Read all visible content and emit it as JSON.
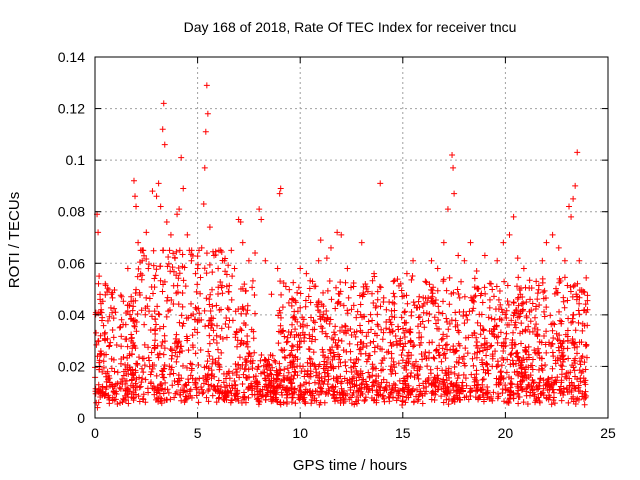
{
  "chart_data": {
    "type": "scatter",
    "title": "Day 168 of 2018, Rate Of TEC Index for receiver tncu",
    "xlabel": "GPS time / hours",
    "ylabel": "ROTI / TECUs",
    "xlim": [
      0,
      25
    ],
    "ylim": [
      0,
      0.14
    ],
    "xticks": [
      0,
      5,
      10,
      15,
      20,
      25
    ],
    "xtick_labels": [
      "0",
      "5",
      "10",
      "15",
      "20",
      "25"
    ],
    "yticks": [
      0,
      0.02,
      0.04,
      0.06,
      0.08,
      0.1,
      0.12,
      0.14
    ],
    "ytick_labels": [
      "0",
      "0.02",
      "0.04",
      "0.06",
      "0.08",
      "0.1",
      "0.12",
      "0.14"
    ],
    "grid": true,
    "marker": "+",
    "color": "#ff0000",
    "series": [
      {
        "name": "ROTI",
        "points": [
          [
            0.05,
            0.033
          ],
          [
            0.1,
            0.079
          ],
          [
            0.15,
            0.072
          ],
          [
            0.2,
            0.055
          ],
          [
            0.25,
            0.046
          ],
          [
            0.3,
            0.042
          ],
          [
            0.12,
            0.004
          ],
          [
            0.18,
            0.006
          ],
          [
            0.5,
            0.052
          ],
          [
            0.8,
            0.048
          ],
          [
            1.0,
            0.041
          ],
          [
            1.3,
            0.047
          ],
          [
            1.6,
            0.058
          ],
          [
            1.9,
            0.092
          ],
          [
            1.95,
            0.086
          ],
          [
            2.0,
            0.082
          ],
          [
            2.1,
            0.068
          ],
          [
            2.3,
            0.061
          ],
          [
            2.5,
            0.072
          ],
          [
            2.6,
            0.058
          ],
          [
            2.8,
            0.088
          ],
          [
            3.0,
            0.086
          ],
          [
            3.1,
            0.091
          ],
          [
            3.2,
            0.082
          ],
          [
            3.3,
            0.112
          ],
          [
            3.35,
            0.122
          ],
          [
            3.4,
            0.106
          ],
          [
            3.5,
            0.076
          ],
          [
            3.7,
            0.071
          ],
          [
            3.9,
            0.062
          ],
          [
            4.0,
            0.079
          ],
          [
            4.1,
            0.081
          ],
          [
            4.2,
            0.101
          ],
          [
            4.3,
            0.089
          ],
          [
            4.5,
            0.071
          ],
          [
            4.7,
            0.061
          ],
          [
            4.9,
            0.056
          ],
          [
            5.0,
            0.058
          ],
          [
            5.2,
            0.066
          ],
          [
            5.3,
            0.083
          ],
          [
            5.35,
            0.097
          ],
          [
            5.4,
            0.111
          ],
          [
            5.45,
            0.129
          ],
          [
            5.5,
            0.118
          ],
          [
            5.6,
            0.074
          ],
          [
            5.8,
            0.063
          ],
          [
            6.0,
            0.058
          ],
          [
            6.3,
            0.061
          ],
          [
            6.5,
            0.049
          ],
          [
            6.8,
            0.058
          ],
          [
            7.0,
            0.077
          ],
          [
            7.1,
            0.076
          ],
          [
            7.2,
            0.068
          ],
          [
            7.5,
            0.061
          ],
          [
            7.8,
            0.064
          ],
          [
            8.0,
            0.081
          ],
          [
            8.1,
            0.077
          ],
          [
            8.3,
            0.061
          ],
          [
            8.6,
            0.048
          ],
          [
            8.9,
            0.058
          ],
          [
            9.0,
            0.087
          ],
          [
            9.05,
            0.089
          ],
          [
            9.3,
            0.051
          ],
          [
            9.6,
            0.046
          ],
          [
            10.0,
            0.058
          ],
          [
            10.3,
            0.056
          ],
          [
            10.6,
            0.053
          ],
          [
            10.9,
            0.061
          ],
          [
            11.0,
            0.069
          ],
          [
            11.3,
            0.062
          ],
          [
            11.5,
            0.066
          ],
          [
            11.8,
            0.072
          ],
          [
            12.0,
            0.071
          ],
          [
            12.3,
            0.058
          ],
          [
            12.6,
            0.051
          ],
          [
            13.0,
            0.068
          ],
          [
            13.3,
            0.049
          ],
          [
            13.6,
            0.056
          ],
          [
            13.9,
            0.091
          ],
          [
            14.2,
            0.042
          ],
          [
            14.6,
            0.047
          ],
          [
            14.9,
            0.052
          ],
          [
            15.2,
            0.056
          ],
          [
            15.5,
            0.061
          ],
          [
            15.8,
            0.047
          ],
          [
            16.1,
            0.053
          ],
          [
            16.4,
            0.061
          ],
          [
            16.7,
            0.058
          ],
          [
            17.0,
            0.068
          ],
          [
            17.2,
            0.081
          ],
          [
            17.4,
            0.102
          ],
          [
            17.45,
            0.097
          ],
          [
            17.5,
            0.087
          ],
          [
            17.7,
            0.063
          ],
          [
            18.0,
            0.061
          ],
          [
            18.3,
            0.068
          ],
          [
            18.6,
            0.057
          ],
          [
            19.0,
            0.063
          ],
          [
            19.3,
            0.052
          ],
          [
            19.6,
            0.061
          ],
          [
            19.9,
            0.068
          ],
          [
            20.2,
            0.071
          ],
          [
            20.4,
            0.078
          ],
          [
            20.6,
            0.062
          ],
          [
            20.9,
            0.058
          ],
          [
            21.2,
            0.046
          ],
          [
            21.5,
            0.053
          ],
          [
            21.8,
            0.061
          ],
          [
            22.0,
            0.068
          ],
          [
            22.3,
            0.071
          ],
          [
            22.6,
            0.066
          ],
          [
            22.9,
            0.061
          ],
          [
            23.1,
            0.082
          ],
          [
            23.2,
            0.078
          ],
          [
            23.3,
            0.085
          ],
          [
            23.4,
            0.09
          ],
          [
            23.5,
            0.103
          ],
          [
            23.6,
            0.061
          ],
          [
            23.8,
            0.049
          ],
          [
            24.0,
            0.042
          ]
        ]
      }
    ]
  }
}
